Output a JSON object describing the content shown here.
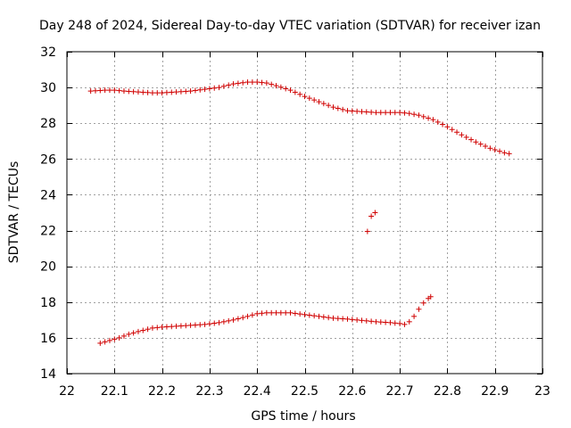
{
  "chart_data": {
    "type": "scatter",
    "title": "Day 248 of 2024, Sidereal Day-to-day VTEC variation (SDTVAR) for receiver izan",
    "xlabel": "GPS time / hours",
    "ylabel": "SDTVAR / TECUs",
    "xlim": [
      22,
      23
    ],
    "ylim": [
      14,
      32
    ],
    "xticks": [
      22,
      22.1,
      22.2,
      22.3,
      22.4,
      22.5,
      22.6,
      22.7,
      22.8,
      22.9,
      23
    ],
    "xtick_labels": [
      "22",
      "22.1",
      "22.2",
      "22.3",
      "22.4",
      "22.5",
      "22.6",
      "22.7",
      "22.8",
      "22.9",
      "23"
    ],
    "yticks": [
      14,
      16,
      18,
      20,
      22,
      24,
      26,
      28,
      30,
      32
    ],
    "ytick_labels": [
      "14",
      "16",
      "18",
      "20",
      "22",
      "24",
      "26",
      "28",
      "30",
      "32"
    ],
    "grid": true,
    "marker": "+",
    "color": "#d00000",
    "series": [
      {
        "name": "upper",
        "x": [
          22.05,
          22.08,
          22.1,
          22.12,
          22.15,
          22.18,
          22.2,
          22.23,
          22.26,
          22.29,
          22.32,
          22.35,
          22.38,
          22.4,
          22.42,
          22.44,
          22.47,
          22.5,
          22.53,
          22.56,
          22.59,
          22.62,
          22.65,
          22.68,
          22.7,
          22.72,
          22.74,
          22.77,
          22.8,
          22.83,
          22.86,
          22.89,
          22.92,
          22.93
        ],
        "y": [
          29.8,
          29.85,
          29.85,
          29.8,
          29.75,
          29.7,
          29.7,
          29.75,
          29.8,
          29.9,
          30.0,
          30.2,
          30.3,
          30.3,
          30.25,
          30.1,
          29.85,
          29.5,
          29.2,
          28.9,
          28.7,
          28.65,
          28.6,
          28.6,
          28.6,
          28.55,
          28.45,
          28.2,
          27.8,
          27.35,
          26.95,
          26.6,
          26.35,
          26.3
        ]
      },
      {
        "name": "outliers",
        "x": [
          22.632,
          22.64,
          22.648
        ],
        "y": [
          21.95,
          22.8,
          23.0
        ]
      },
      {
        "name": "lower",
        "x": [
          22.07,
          22.09,
          22.11,
          22.13,
          22.15,
          22.18,
          22.2,
          22.23,
          22.26,
          22.29,
          22.32,
          22.35,
          22.38,
          22.4,
          22.42,
          22.44,
          22.47,
          22.5,
          22.53,
          22.56,
          22.59,
          22.61,
          22.63,
          22.65,
          22.68,
          22.7,
          22.71,
          22.72,
          22.73,
          22.74,
          22.75,
          22.76,
          22.765
        ],
        "y": [
          15.7,
          15.85,
          16.0,
          16.2,
          16.35,
          16.55,
          16.6,
          16.65,
          16.7,
          16.75,
          16.85,
          17.0,
          17.2,
          17.35,
          17.4,
          17.4,
          17.4,
          17.3,
          17.2,
          17.1,
          17.05,
          17.0,
          16.95,
          16.9,
          16.85,
          16.8,
          16.75,
          16.9,
          17.2,
          17.6,
          17.95,
          18.2,
          18.3
        ]
      }
    ]
  }
}
